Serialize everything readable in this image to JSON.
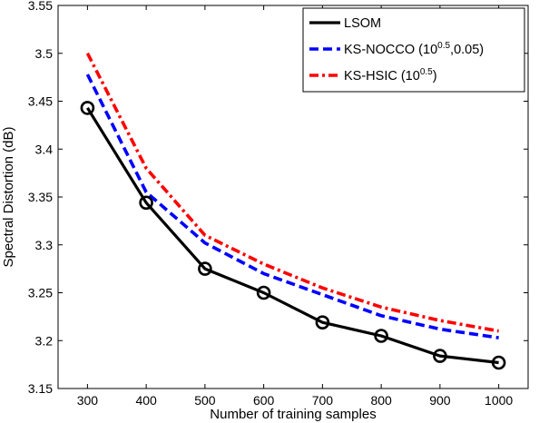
{
  "chart_data": {
    "type": "line",
    "xlabel": "Number of training samples",
    "ylabel": "Spectral Distortion (dB)",
    "xlim": [
      250,
      1050
    ],
    "ylim": [
      3.15,
      3.55
    ],
    "x_ticks": [
      300,
      400,
      500,
      600,
      700,
      800,
      900,
      1000
    ],
    "y_ticks": [
      3.15,
      3.2,
      3.25,
      3.3,
      3.35,
      3.4,
      3.45,
      3.5,
      3.55
    ],
    "y_tick_labels": [
      "3.15",
      "3.2",
      "3.25",
      "3.3",
      "3.35",
      "3.4",
      "3.45",
      "3.5",
      "3.55"
    ],
    "grid": false,
    "legend_position": "top-right",
    "x": [
      300,
      400,
      500,
      600,
      700,
      800,
      900,
      1000
    ],
    "series": [
      {
        "name": "LSOM",
        "legend": {
          "text": "LSOM"
        },
        "values": [
          3.443,
          3.344,
          3.275,
          3.25,
          3.219,
          3.205,
          3.184,
          3.177
        ],
        "color": "#000000",
        "style": "solid",
        "marker": "circle"
      },
      {
        "name": "KS-NOCCO (10^0.5,0.05)",
        "legend": {
          "text": "KS-NOCCO (10",
          "sup": "0.5",
          "post": ",0.05)"
        },
        "values": [
          3.478,
          3.355,
          3.302,
          3.27,
          3.248,
          3.226,
          3.212,
          3.203
        ],
        "color": "#0000ff",
        "style": "dashed",
        "marker": "none"
      },
      {
        "name": "KS-HSIC (10^0.5)",
        "legend": {
          "text": "KS-HSIC (10",
          "sup": "0.5",
          "post": ")"
        },
        "values": [
          3.5,
          3.38,
          3.31,
          3.28,
          3.255,
          3.235,
          3.221,
          3.21
        ],
        "color": "#ff0000",
        "style": "dashdot",
        "marker": "none"
      }
    ]
  }
}
